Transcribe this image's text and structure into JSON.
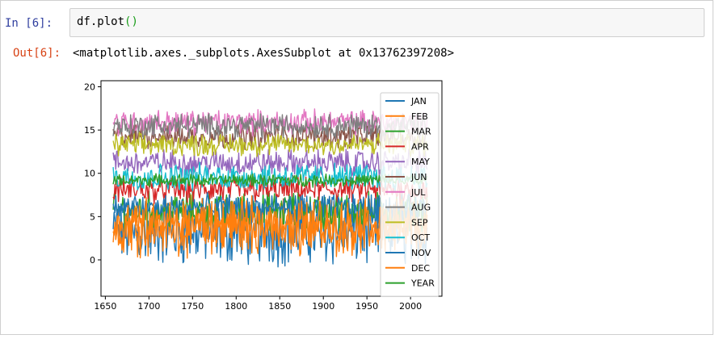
{
  "notebook": {
    "in_prompt": "In  [6]:",
    "code_text": "df.plot",
    "code_paren": "()",
    "out_prompt": "Out[6]:",
    "output_text": "<matplotlib.axes._subplots.AxesSubplot at 0x13762397208>"
  },
  "chart_data": {
    "type": "line",
    "title": "",
    "xlabel": "",
    "ylabel": "",
    "xlim": [
      1645,
      2036
    ],
    "ylim": [
      -4.2,
      20.7
    ],
    "xticks": [
      1650,
      1700,
      1750,
      1800,
      1850,
      1900,
      1950,
      2000
    ],
    "yticks": [
      0,
      5,
      10,
      15,
      20
    ],
    "x_range": [
      1659,
      2019
    ],
    "grid": false,
    "legend_position": "upper right",
    "series": [
      {
        "name": "JAN",
        "color": "#1f77b4",
        "mean": 3.2,
        "amplitude": 3.0,
        "min": -3.1,
        "max": 7.5
      },
      {
        "name": "FEB",
        "color": "#ff7f0e",
        "mean": 3.9,
        "amplitude": 2.6,
        "min": -1.9,
        "max": 7.5
      },
      {
        "name": "MAR",
        "color": "#2ca02c",
        "mean": 5.7,
        "amplitude": 1.7,
        "min": 1.5,
        "max": 9.2
      },
      {
        "name": "APR",
        "color": "#d62728",
        "mean": 8.1,
        "amplitude": 1.2,
        "min": 5.0,
        "max": 10.7
      },
      {
        "name": "MAY",
        "color": "#9467bd",
        "mean": 11.2,
        "amplitude": 1.2,
        "min": 8.5,
        "max": 14.0
      },
      {
        "name": "JUN",
        "color": "#8c564b",
        "mean": 14.3,
        "amplitude": 1.1,
        "min": 11.5,
        "max": 17.0
      },
      {
        "name": "JUL",
        "color": "#e377c2",
        "mean": 15.9,
        "amplitude": 1.1,
        "min": 13.4,
        "max": 19.7
      },
      {
        "name": "AUG",
        "color": "#7f7f7f",
        "mean": 15.5,
        "amplitude": 1.1,
        "min": 12.9,
        "max": 18.5
      },
      {
        "name": "SEP",
        "color": "#bcbd22",
        "mean": 13.3,
        "amplitude": 1.0,
        "min": 10.8,
        "max": 16.0
      },
      {
        "name": "OCT",
        "color": "#17becf",
        "mean": 9.6,
        "amplitude": 1.2,
        "min": 6.5,
        "max": 12.3
      },
      {
        "name": "NOV",
        "color": "#1f77b4",
        "mean": 6.0,
        "amplitude": 1.2,
        "min": 2.2,
        "max": 9.0
      },
      {
        "name": "DEC",
        "color": "#ff7f0e",
        "mean": 4.2,
        "amplitude": 2.2,
        "min": -1.3,
        "max": 8.0
      },
      {
        "name": "YEAR",
        "color": "#2ca02c",
        "mean": 9.2,
        "amplitude": 0.55,
        "min": 7.5,
        "max": 10.8
      }
    ]
  }
}
